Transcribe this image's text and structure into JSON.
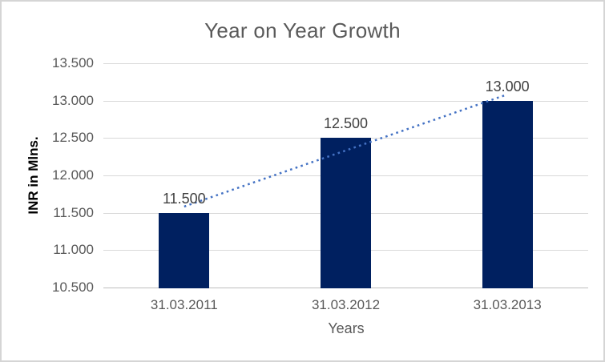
{
  "chart_data": {
    "type": "bar",
    "title": "Year on Year Growth",
    "xlabel": "Years",
    "ylabel": "INR in Mlns.",
    "categories": [
      "31.03.2011",
      "31.03.2012",
      "31.03.2013"
    ],
    "values": [
      11500,
      12500,
      13000
    ],
    "data_labels": [
      "11.500",
      "12.500",
      "13.000"
    ],
    "ylim": [
      10500,
      13500
    ],
    "y_tick_step": 500,
    "y_tick_labels": [
      "10.500",
      "11.000",
      "11.500",
      "12.000",
      "12.500",
      "13.000",
      "13.500"
    ],
    "grid": "horizontal",
    "legend": "none",
    "trendline": {
      "type": "linear",
      "style": "dotted",
      "spans": "first-to-last-category"
    },
    "colors": {
      "bar": "#002060",
      "trendline": "#4472C4",
      "title_text": "#595959",
      "axis_text": "#595959",
      "data_label_text": "#404040",
      "y_axis_title_text": "#000000",
      "gridline": "#D9D9D9",
      "axis_line": "#BFBFBF",
      "chart_border": "#D5D5D5",
      "background": "#FFFFFF"
    }
  }
}
